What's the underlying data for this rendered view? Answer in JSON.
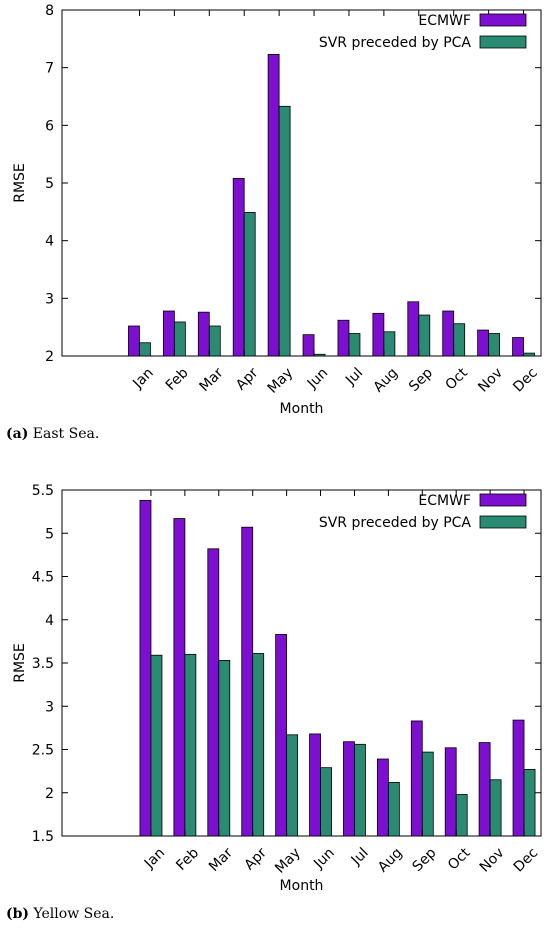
{
  "chart_data": [
    {
      "type": "bar",
      "categories": [
        "Jan",
        "Feb",
        "Mar",
        "Apr",
        "May",
        "Jun",
        "Jul",
        "Aug",
        "Sep",
        "Oct",
        "Nov",
        "Dec"
      ],
      "series": [
        {
          "name": "ECMWF",
          "values": [
            2.52,
            2.78,
            2.76,
            5.08,
            7.23,
            2.37,
            2.62,
            2.74,
            2.94,
            2.78,
            2.45,
            2.32
          ]
        },
        {
          "name": "SVR preceded by PCA",
          "values": [
            2.23,
            2.59,
            2.52,
            4.49,
            6.33,
            2.03,
            2.39,
            2.42,
            2.71,
            2.56,
            2.39,
            2.05
          ]
        }
      ],
      "xlabel": "Month",
      "ylabel": "RMSE",
      "ylim": [
        2,
        8
      ],
      "yticks": [
        "2",
        "3",
        "4",
        "5",
        "6",
        "7",
        "8"
      ],
      "legend_position": "top-right",
      "grid": false
    },
    {
      "type": "bar",
      "categories": [
        "Jan",
        "Feb",
        "Mar",
        "Apr",
        "May",
        "Jun",
        "Jul",
        "Aug",
        "Sep",
        "Oct",
        "Nov",
        "Dec"
      ],
      "series": [
        {
          "name": "ECMWF",
          "values": [
            5.38,
            5.17,
            4.82,
            5.07,
            3.83,
            2.68,
            2.59,
            2.39,
            2.83,
            2.52,
            2.58,
            2.84
          ]
        },
        {
          "name": "SVR preceded by PCA",
          "values": [
            3.59,
            3.6,
            3.53,
            3.61,
            2.67,
            2.29,
            2.56,
            2.12,
            2.47,
            1.98,
            2.15,
            2.27
          ]
        }
      ],
      "xlabel": "Month",
      "ylabel": "RMSE",
      "ylim": [
        1.5,
        5.5
      ],
      "yticks": [
        "1.5",
        "2",
        "2.5",
        "3",
        "3.5",
        "4",
        "4.5",
        "5",
        "5.5"
      ],
      "legend_position": "top-right",
      "grid": false
    }
  ],
  "captions": [
    {
      "label": "(a)",
      "text": " East Sea."
    },
    {
      "label": "(b)",
      "text": " Yellow Sea."
    }
  ],
  "colors": {
    "ecmwf": "#7d0fd1",
    "svr": "#2b8a72"
  }
}
